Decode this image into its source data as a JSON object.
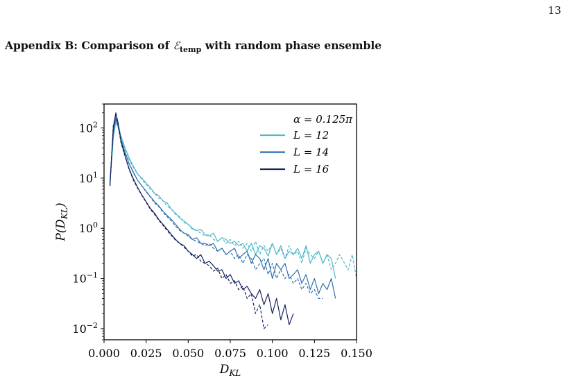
{
  "page": {
    "number": "13",
    "heading_prefix": "Appendix B: Comparison of ",
    "heading_symbol": "ℰ",
    "heading_subscript": "temp",
    "heading_suffix": " with random phase ensemble"
  },
  "chart_data": {
    "type": "line",
    "title": "",
    "xlabel": "D",
    "xlabel_sub": "KL",
    "ylabel": "P(D",
    "ylabel_sub": "KL",
    "ylabel_close": ")",
    "yscale": "log",
    "xlim": [
      0.0,
      0.15
    ],
    "ylim": [
      0.006,
      300
    ],
    "xticks": [
      {
        "v": 0.0,
        "label": "0.000"
      },
      {
        "v": 0.025,
        "label": "0.025"
      },
      {
        "v": 0.05,
        "label": "0.050"
      },
      {
        "v": 0.075,
        "label": "0.075"
      },
      {
        "v": 0.1,
        "label": "0.100"
      },
      {
        "v": 0.125,
        "label": "0.125"
      },
      {
        "v": 0.15,
        "label": "0.150"
      }
    ],
    "yticks": [
      {
        "v": 100,
        "base": "10",
        "exp": "2"
      },
      {
        "v": 10,
        "base": "10",
        "exp": "1"
      },
      {
        "v": 1,
        "base": "10",
        "exp": "0"
      },
      {
        "v": 0.1,
        "base": "10",
        "exp": "−1"
      },
      {
        "v": 0.01,
        "base": "10",
        "exp": "−2"
      }
    ],
    "legend": {
      "placement": "top-right",
      "header": "α = 0.125π",
      "entries": [
        "L = 12",
        "L = 14",
        "L = 16"
      ]
    },
    "series": [
      {
        "name": "L = 12",
        "color": "#4db8c8",
        "style": "solid",
        "x": [
          0.0035,
          0.0055,
          0.007,
          0.0085,
          0.01,
          0.0125,
          0.015,
          0.0175,
          0.02,
          0.0225,
          0.025,
          0.0275,
          0.03,
          0.0325,
          0.035,
          0.0375,
          0.04,
          0.0425,
          0.045,
          0.0475,
          0.05,
          0.0525,
          0.055,
          0.0575,
          0.06,
          0.0625,
          0.065,
          0.0675,
          0.07,
          0.0725,
          0.075,
          0.0775,
          0.08,
          0.0825,
          0.085,
          0.0875,
          0.09,
          0.0925,
          0.095,
          0.0975,
          0.1,
          0.1025,
          0.105,
          0.1075,
          0.11,
          0.1125,
          0.115,
          0.1175,
          0.12,
          0.1225,
          0.125,
          0.1275,
          0.13,
          0.1325,
          0.135,
          0.1375
        ],
        "y": [
          8,
          60,
          140,
          110,
          70,
          40,
          25,
          17,
          12,
          10,
          8,
          6.5,
          5,
          4.5,
          3.5,
          3.2,
          2.4,
          2,
          1.6,
          1.4,
          1.2,
          1.0,
          0.9,
          0.95,
          0.75,
          0.7,
          0.8,
          0.55,
          0.65,
          0.6,
          0.5,
          0.55,
          0.45,
          0.5,
          0.35,
          0.5,
          0.3,
          0.45,
          0.4,
          0.28,
          0.5,
          0.3,
          0.45,
          0.25,
          0.35,
          0.3,
          0.4,
          0.25,
          0.45,
          0.2,
          0.3,
          0.35,
          0.2,
          0.3,
          0.25,
          0.1
        ]
      },
      {
        "name": "L = 12 (random phase)",
        "color": "#4db8c8",
        "style": "dashed",
        "x": [
          0.0035,
          0.0055,
          0.007,
          0.0085,
          0.01,
          0.0125,
          0.015,
          0.0175,
          0.02,
          0.0225,
          0.025,
          0.0275,
          0.03,
          0.0325,
          0.035,
          0.0375,
          0.04,
          0.0425,
          0.045,
          0.0475,
          0.05,
          0.0525,
          0.055,
          0.0575,
          0.06,
          0.0625,
          0.065,
          0.0675,
          0.07,
          0.0725,
          0.075,
          0.0775,
          0.08,
          0.0825,
          0.085,
          0.0875,
          0.09,
          0.0925,
          0.095,
          0.0975,
          0.1,
          0.1025,
          0.105,
          0.1075,
          0.11,
          0.1125,
          0.115,
          0.1175,
          0.12,
          0.1225,
          0.125,
          0.1275,
          0.13,
          0.1325,
          0.135,
          0.1375,
          0.14,
          0.145,
          0.1475,
          0.15
        ],
        "y": [
          8,
          70,
          130,
          100,
          65,
          38,
          23,
          16,
          12,
          9.5,
          7.5,
          6,
          5,
          4,
          3.6,
          2.8,
          2.4,
          1.9,
          1.7,
          1.3,
          1.2,
          0.95,
          0.9,
          0.8,
          0.7,
          0.75,
          0.6,
          0.55,
          0.65,
          0.5,
          0.6,
          0.45,
          0.55,
          0.4,
          0.5,
          0.35,
          0.55,
          0.3,
          0.45,
          0.35,
          0.5,
          0.3,
          0.4,
          0.25,
          0.45,
          0.3,
          0.35,
          0.2,
          0.4,
          0.3,
          0.25,
          0.35,
          0.2,
          0.3,
          0.15,
          0.2,
          0.3,
          0.15,
          0.3,
          0.1
        ]
      },
      {
        "name": "L = 14",
        "color": "#2f6fae",
        "style": "solid",
        "x": [
          0.0035,
          0.0055,
          0.007,
          0.0085,
          0.01,
          0.0125,
          0.015,
          0.0175,
          0.02,
          0.0225,
          0.025,
          0.0275,
          0.03,
          0.0325,
          0.035,
          0.0375,
          0.04,
          0.0425,
          0.045,
          0.0475,
          0.05,
          0.0525,
          0.055,
          0.0575,
          0.06,
          0.0625,
          0.065,
          0.0675,
          0.07,
          0.0725,
          0.075,
          0.0775,
          0.08,
          0.0825,
          0.085,
          0.0875,
          0.09,
          0.0925,
          0.095,
          0.0975,
          0.1,
          0.1025,
          0.105,
          0.1075,
          0.11,
          0.1125,
          0.115,
          0.1175,
          0.12,
          0.1225,
          0.125,
          0.1275,
          0.13,
          0.1325,
          0.135,
          0.1375
        ],
        "y": [
          8,
          80,
          160,
          110,
          60,
          33,
          19,
          13,
          9,
          7,
          5.5,
          4.3,
          3.4,
          2.8,
          2.2,
          1.8,
          1.5,
          1.2,
          0.95,
          0.8,
          0.75,
          0.6,
          0.65,
          0.5,
          0.5,
          0.45,
          0.5,
          0.35,
          0.4,
          0.3,
          0.35,
          0.4,
          0.25,
          0.3,
          0.35,
          0.2,
          0.3,
          0.25,
          0.15,
          0.25,
          0.1,
          0.2,
          0.15,
          0.2,
          0.1,
          0.12,
          0.15,
          0.08,
          0.12,
          0.06,
          0.1,
          0.05,
          0.08,
          0.06,
          0.1,
          0.04
        ]
      },
      {
        "name": "L = 14 (random phase)",
        "color": "#2f6fae",
        "style": "dashed",
        "x": [
          0.0035,
          0.0055,
          0.007,
          0.0085,
          0.01,
          0.0125,
          0.015,
          0.0175,
          0.02,
          0.0225,
          0.025,
          0.0275,
          0.03,
          0.0325,
          0.035,
          0.0375,
          0.04,
          0.0425,
          0.045,
          0.0475,
          0.05,
          0.0525,
          0.055,
          0.0575,
          0.06,
          0.0625,
          0.065,
          0.0675,
          0.07,
          0.0725,
          0.075,
          0.0775,
          0.08,
          0.0825,
          0.085,
          0.0875,
          0.09,
          0.0925,
          0.095,
          0.0975,
          0.1,
          0.1025,
          0.105,
          0.1075,
          0.11,
          0.1125,
          0.115,
          0.1175,
          0.12,
          0.1225,
          0.125,
          0.1275,
          0.13
        ],
        "y": [
          8,
          85,
          150,
          100,
          58,
          32,
          19,
          12.5,
          9,
          7,
          5.3,
          4.2,
          3.2,
          2.7,
          2.1,
          1.7,
          1.4,
          1.1,
          0.9,
          0.8,
          0.7,
          0.6,
          0.55,
          0.5,
          0.45,
          0.5,
          0.4,
          0.35,
          0.4,
          0.3,
          0.35,
          0.25,
          0.3,
          0.2,
          0.3,
          0.25,
          0.15,
          0.2,
          0.25,
          0.12,
          0.2,
          0.1,
          0.15,
          0.1,
          0.12,
          0.08,
          0.1,
          0.06,
          0.08,
          0.05,
          0.06,
          0.04,
          0.04
        ]
      },
      {
        "name": "L = 16",
        "color": "#13235c",
        "style": "solid",
        "x": [
          0.0035,
          0.0055,
          0.007,
          0.0085,
          0.01,
          0.0125,
          0.015,
          0.0175,
          0.02,
          0.0225,
          0.025,
          0.0275,
          0.03,
          0.0325,
          0.035,
          0.0375,
          0.04,
          0.0425,
          0.045,
          0.0475,
          0.05,
          0.0525,
          0.055,
          0.0575,
          0.06,
          0.0625,
          0.065,
          0.0675,
          0.07,
          0.0725,
          0.075,
          0.0775,
          0.08,
          0.0825,
          0.085,
          0.0875,
          0.09,
          0.0925,
          0.095,
          0.0975,
          0.1,
          0.1025,
          0.105,
          0.1075,
          0.11,
          0.1125
        ],
        "y": [
          7,
          100,
          200,
          120,
          55,
          28,
          15,
          9.5,
          6.5,
          4.6,
          3.4,
          2.5,
          2,
          1.5,
          1.2,
          0.95,
          0.75,
          0.6,
          0.5,
          0.45,
          0.35,
          0.3,
          0.25,
          0.3,
          0.2,
          0.22,
          0.18,
          0.14,
          0.15,
          0.1,
          0.12,
          0.08,
          0.09,
          0.06,
          0.07,
          0.05,
          0.04,
          0.06,
          0.03,
          0.05,
          0.02,
          0.04,
          0.015,
          0.03,
          0.012,
          0.02
        ]
      },
      {
        "name": "L = 16 (random phase)",
        "color": "#13235c",
        "style": "dashed",
        "x": [
          0.0035,
          0.0055,
          0.007,
          0.0085,
          0.01,
          0.0125,
          0.015,
          0.0175,
          0.02,
          0.0225,
          0.025,
          0.0275,
          0.03,
          0.0325,
          0.035,
          0.0375,
          0.04,
          0.0425,
          0.045,
          0.0475,
          0.05,
          0.0525,
          0.055,
          0.0575,
          0.06,
          0.0625,
          0.065,
          0.0675,
          0.07,
          0.0725,
          0.075,
          0.0775,
          0.08,
          0.0825,
          0.085,
          0.0875,
          0.09,
          0.0925,
          0.095,
          0.0975
        ],
        "y": [
          7,
          110,
          190,
          110,
          52,
          27,
          14.5,
          9,
          6.3,
          4.5,
          3.3,
          2.4,
          1.9,
          1.45,
          1.15,
          0.9,
          0.72,
          0.58,
          0.5,
          0.42,
          0.35,
          0.28,
          0.3,
          0.22,
          0.2,
          0.18,
          0.14,
          0.16,
          0.1,
          0.12,
          0.08,
          0.09,
          0.06,
          0.07,
          0.04,
          0.05,
          0.02,
          0.03,
          0.01,
          0.012
        ]
      }
    ]
  }
}
